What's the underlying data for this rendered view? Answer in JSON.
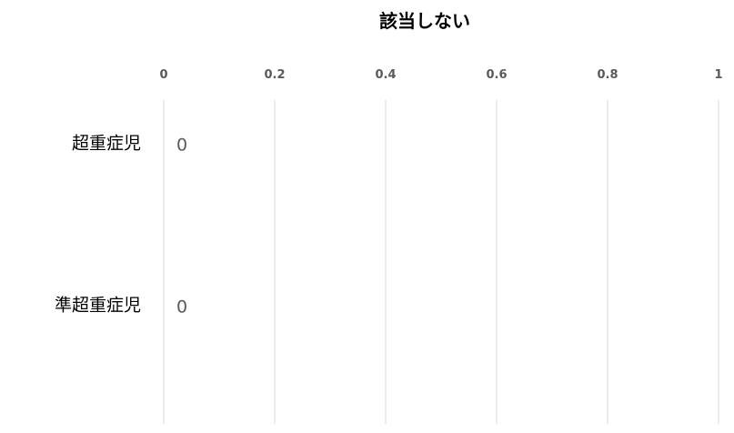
{
  "chart_data": {
    "type": "bar",
    "orientation": "horizontal",
    "title": "該当しない",
    "categories": [
      "超重症児",
      "準超重症児"
    ],
    "series": [
      {
        "values": [
          0,
          0
        ]
      }
    ],
    "xlim": [
      0,
      1
    ],
    "x_ticks": [
      "0",
      "0.2",
      "0.4",
      "0.6",
      "0.8",
      "1"
    ],
    "data_labels": [
      "0",
      "0"
    ],
    "axis_position": "top",
    "grid": true,
    "legend": "none",
    "colors": {
      "gridline": "#d9d9d9",
      "tick_text": "#595959",
      "data_label_text": "#595959",
      "category_text": "#000000",
      "title_text": "#000000",
      "bar": "#4472c4"
    }
  }
}
